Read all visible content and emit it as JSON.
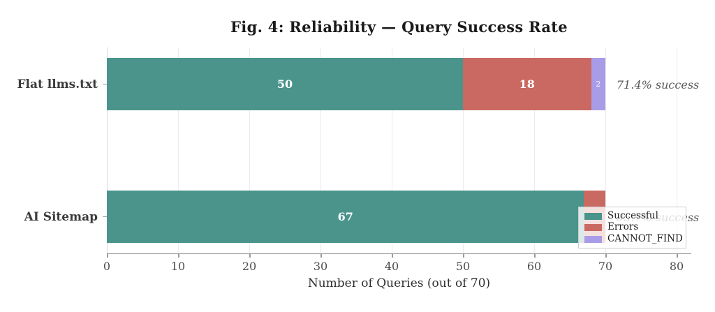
{
  "chart_data": {
    "type": "stacked_bar_horizontal",
    "title": "Fig. 4: Reliability — Query Success Rate",
    "xlabel": "Number of Queries (out of 70)",
    "categories": [
      "Flat llms.txt",
      "AI Sitemap"
    ],
    "series": [
      {
        "name": "Successful",
        "color": "#4a948c",
        "values": [
          50,
          67
        ]
      },
      {
        "name": "Errors",
        "color": "#c96961",
        "values": [
          18,
          3
        ]
      },
      {
        "name": "CANNOT_FIND",
        "color": "#a89ce8",
        "values": [
          2,
          0
        ]
      }
    ],
    "bar_totals": [
      70,
      70
    ],
    "annotations": [
      "71.4% success",
      "95.7% success"
    ],
    "xlim": [
      0,
      80
    ],
    "xticks": [
      0,
      10,
      20,
      30,
      40,
      50,
      60,
      70,
      80
    ],
    "grid": true,
    "legend": {
      "position": "lower-right",
      "entries": [
        "Successful",
        "Errors",
        "CANNOT_FIND"
      ]
    },
    "colors": {
      "bar_label": "#ffffff",
      "annotation_text": "#595959"
    }
  }
}
